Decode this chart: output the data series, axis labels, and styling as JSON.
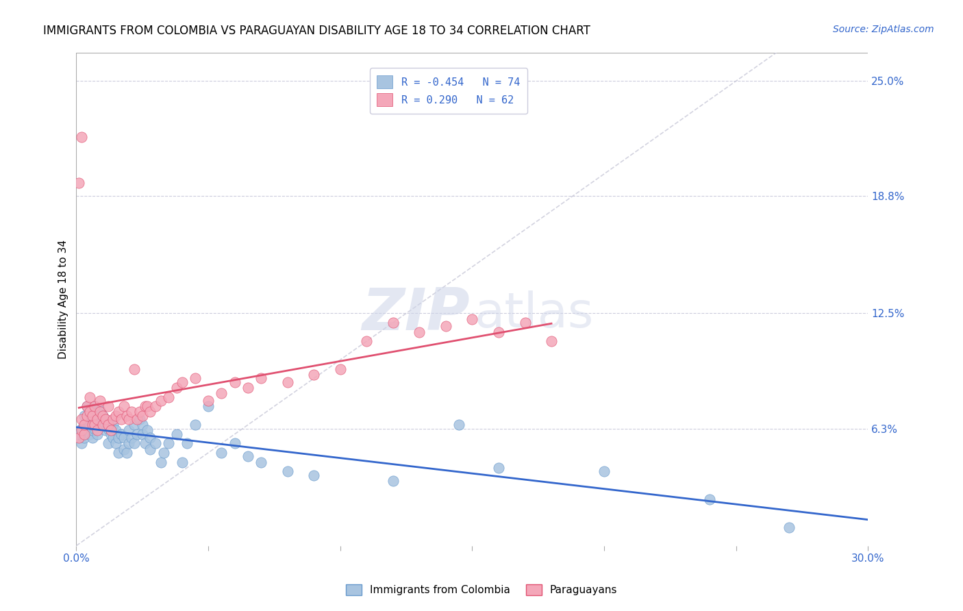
{
  "title": "IMMIGRANTS FROM COLOMBIA VS PARAGUAYAN DISABILITY AGE 18 TO 34 CORRELATION CHART",
  "source": "Source: ZipAtlas.com",
  "ylabel": "Disability Age 18 to 34",
  "x_min": 0.0,
  "x_max": 0.3,
  "y_min": 0.0,
  "y_max": 0.265,
  "x_ticks": [
    0.0,
    0.05,
    0.1,
    0.15,
    0.2,
    0.25,
    0.3
  ],
  "x_tick_labels": [
    "0.0%",
    "",
    "",
    "",
    "",
    "",
    "30.0%"
  ],
  "right_y_ticks": [
    0.063,
    0.125,
    0.188,
    0.25
  ],
  "right_y_tick_labels": [
    "6.3%",
    "12.5%",
    "18.8%",
    "25.0%"
  ],
  "legend_R1": "-0.454",
  "legend_N1": "74",
  "legend_R2": " 0.290",
  "legend_N2": "62",
  "blue_color": "#a8c4e0",
  "blue_color_dark": "#6699cc",
  "pink_color": "#f4a7b9",
  "pink_color_dark": "#e05070",
  "trend_blue": "#3366cc",
  "trend_pink": "#e05070",
  "ref_line_color": "#c8c8d8",
  "blue_points_x": [
    0.001,
    0.002,
    0.002,
    0.003,
    0.003,
    0.003,
    0.004,
    0.004,
    0.004,
    0.005,
    0.005,
    0.005,
    0.006,
    0.006,
    0.006,
    0.007,
    0.007,
    0.007,
    0.008,
    0.008,
    0.008,
    0.009,
    0.009,
    0.01,
    0.01,
    0.011,
    0.011,
    0.012,
    0.012,
    0.013,
    0.014,
    0.014,
    0.015,
    0.015,
    0.016,
    0.016,
    0.017,
    0.018,
    0.018,
    0.019,
    0.02,
    0.02,
    0.021,
    0.022,
    0.022,
    0.023,
    0.024,
    0.025,
    0.025,
    0.026,
    0.027,
    0.028,
    0.028,
    0.03,
    0.032,
    0.033,
    0.035,
    0.038,
    0.04,
    0.042,
    0.045,
    0.05,
    0.055,
    0.06,
    0.065,
    0.07,
    0.08,
    0.09,
    0.12,
    0.145,
    0.16,
    0.2,
    0.24,
    0.27
  ],
  "blue_points_y": [
    0.06,
    0.063,
    0.055,
    0.058,
    0.065,
    0.07,
    0.062,
    0.068,
    0.075,
    0.06,
    0.065,
    0.072,
    0.058,
    0.062,
    0.068,
    0.063,
    0.07,
    0.075,
    0.06,
    0.065,
    0.072,
    0.068,
    0.073,
    0.065,
    0.07,
    0.062,
    0.068,
    0.055,
    0.063,
    0.06,
    0.058,
    0.065,
    0.055,
    0.062,
    0.05,
    0.058,
    0.06,
    0.052,
    0.058,
    0.05,
    0.055,
    0.062,
    0.058,
    0.065,
    0.055,
    0.06,
    0.068,
    0.06,
    0.065,
    0.055,
    0.062,
    0.052,
    0.058,
    0.055,
    0.045,
    0.05,
    0.055,
    0.06,
    0.045,
    0.055,
    0.065,
    0.075,
    0.05,
    0.055,
    0.048,
    0.045,
    0.04,
    0.038,
    0.035,
    0.065,
    0.042,
    0.04,
    0.025,
    0.01
  ],
  "pink_points_x": [
    0.001,
    0.002,
    0.002,
    0.003,
    0.003,
    0.004,
    0.004,
    0.005,
    0.005,
    0.006,
    0.006,
    0.007,
    0.007,
    0.008,
    0.008,
    0.009,
    0.009,
    0.01,
    0.01,
    0.011,
    0.012,
    0.012,
    0.013,
    0.014,
    0.015,
    0.016,
    0.017,
    0.018,
    0.019,
    0.02,
    0.021,
    0.022,
    0.023,
    0.024,
    0.025,
    0.026,
    0.027,
    0.028,
    0.03,
    0.032,
    0.035,
    0.038,
    0.04,
    0.045,
    0.05,
    0.055,
    0.06,
    0.065,
    0.07,
    0.08,
    0.09,
    0.1,
    0.11,
    0.12,
    0.13,
    0.14,
    0.15,
    0.16,
    0.17,
    0.18,
    0.001,
    0.002
  ],
  "pink_points_y": [
    0.058,
    0.062,
    0.068,
    0.06,
    0.065,
    0.07,
    0.075,
    0.08,
    0.072,
    0.065,
    0.07,
    0.075,
    0.065,
    0.068,
    0.062,
    0.072,
    0.078,
    0.065,
    0.07,
    0.068,
    0.075,
    0.065,
    0.062,
    0.068,
    0.07,
    0.072,
    0.068,
    0.075,
    0.07,
    0.068,
    0.072,
    0.095,
    0.068,
    0.072,
    0.07,
    0.075,
    0.075,
    0.072,
    0.075,
    0.078,
    0.08,
    0.085,
    0.088,
    0.09,
    0.078,
    0.082,
    0.088,
    0.085,
    0.09,
    0.088,
    0.092,
    0.095,
    0.11,
    0.12,
    0.115,
    0.118,
    0.122,
    0.115,
    0.12,
    0.11,
    0.195,
    0.22
  ]
}
